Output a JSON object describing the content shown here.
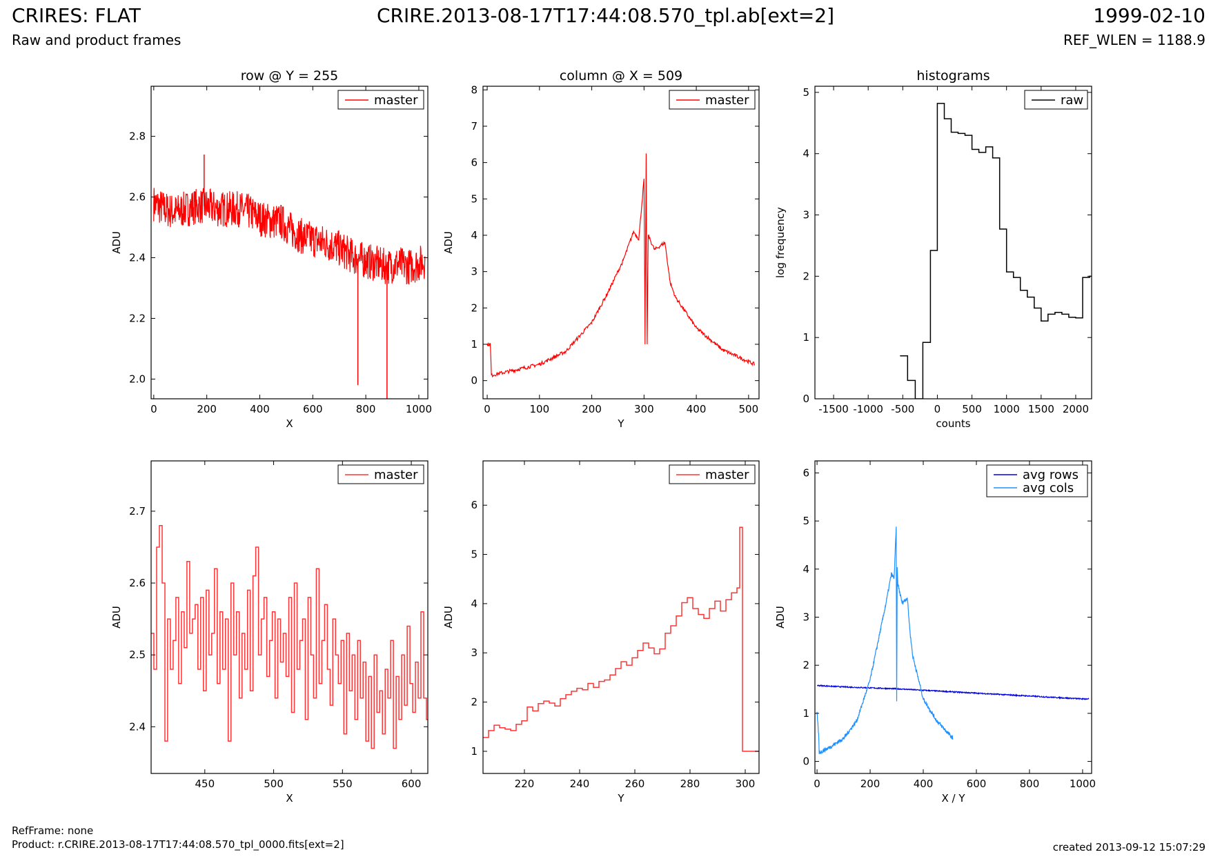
{
  "header": {
    "title": "CRIRES: FLAT",
    "subtitle": "Raw and product frames",
    "file": "CRIRE.2013-08-17T17:44:08.570_tpl.ab[ext=2]",
    "date": "1999-02-10",
    "ref_wlen": "REF_WLEN = 1188.9"
  },
  "footer": {
    "refframe": "RefFrame: none",
    "product": "Product: r.CRIRE.2013-08-17T17:44:08.570_tpl_0000.fits[ext=2]",
    "created": "created 2013-09-12 15:07:29"
  },
  "chart_data": [
    {
      "id": "row",
      "type": "line",
      "title": "row @ Y = 255",
      "xlabel": "X",
      "ylabel": "ADU",
      "xlim": [
        -10,
        1034
      ],
      "ylim": [
        1.935,
        2.965
      ],
      "xticks": [
        0,
        200,
        400,
        600,
        800,
        1000
      ],
      "yticks": [
        2.0,
        2.2,
        2.4,
        2.6,
        2.8
      ],
      "ytick_labels": [
        "2.0",
        "2.2",
        "2.4",
        "2.6",
        "2.8"
      ],
      "legend": "top-right",
      "series": [
        {
          "name": "master",
          "color": "#ff0000",
          "x": [
            0,
            40,
            80,
            120,
            160,
            200,
            240,
            280,
            320,
            360,
            400,
            440,
            480,
            520,
            560,
            600,
            640,
            680,
            720,
            760,
            800,
            840,
            880,
            920,
            960,
            1000,
            1023
          ],
          "y": [
            2.58,
            2.56,
            2.55,
            2.56,
            2.57,
            2.57,
            2.56,
            2.56,
            2.56,
            2.55,
            2.53,
            2.52,
            2.52,
            2.49,
            2.47,
            2.46,
            2.45,
            2.44,
            2.42,
            2.4,
            2.39,
            2.38,
            2.37,
            2.38,
            2.37,
            2.38,
            2.39
          ],
          "noise": 0.06,
          "spikes": [
            {
              "x": 190,
              "y": 2.74
            },
            {
              "x": 770,
              "y": 1.98
            },
            {
              "x": 880,
              "y": 1.93
            }
          ]
        }
      ]
    },
    {
      "id": "column",
      "type": "line",
      "title": "column @ X = 509",
      "xlabel": "Y",
      "ylabel": "ADU",
      "xlim": [
        -8,
        520
      ],
      "ylim": [
        -0.5,
        8.1
      ],
      "xticks": [
        0,
        100,
        200,
        300,
        400,
        500
      ],
      "yticks": [
        0,
        1,
        2,
        3,
        4,
        5,
        6,
        7,
        8
      ],
      "legend": "top-right",
      "series": [
        {
          "name": "master",
          "color": "#ff0000",
          "x": [
            0,
            6,
            8,
            50,
            100,
            150,
            200,
            230,
            260,
            280,
            290,
            300,
            302,
            304,
            306,
            308,
            320,
            340,
            350,
            360,
            400,
            450,
            511
          ],
          "y": [
            1.0,
            1.0,
            0.15,
            0.28,
            0.45,
            0.8,
            1.6,
            2.4,
            3.3,
            4.1,
            3.9,
            5.55,
            1.0,
            6.25,
            1.0,
            4.0,
            3.6,
            3.8,
            2.7,
            2.3,
            1.45,
            0.85,
            0.45
          ],
          "noise": 0.05
        }
      ]
    },
    {
      "id": "hist",
      "type": "line",
      "title": "histograms",
      "xlabel": "counts",
      "ylabel": "log frequency",
      "xlim": [
        -1770,
        2230
      ],
      "ylim": [
        0,
        5.1
      ],
      "xticks": [
        -1500,
        -1000,
        -500,
        0,
        500,
        1000,
        1500,
        2000
      ],
      "yticks": [
        0,
        1,
        2,
        3,
        4,
        5
      ],
      "legend": "top-right",
      "series": [
        {
          "name": "raw",
          "color": "#000000",
          "step": true,
          "x": [
            -540,
            -430,
            -320,
            -210,
            -100,
            0,
            100,
            200,
            300,
            400,
            500,
            600,
            700,
            800,
            900,
            1000,
            1100,
            1200,
            1300,
            1400,
            1500,
            1600,
            1700,
            1800,
            1900,
            2000,
            2100,
            2200
          ],
          "y": [
            0.7,
            0.3,
            0.0,
            0.92,
            2.42,
            4.82,
            4.57,
            4.35,
            4.33,
            4.3,
            4.07,
            4.02,
            4.11,
            3.93,
            2.77,
            2.07,
            1.98,
            1.77,
            1.66,
            1.48,
            1.27,
            1.38,
            1.41,
            1.38,
            1.33,
            1.32,
            1.98,
            2.0
          ]
        }
      ]
    },
    {
      "id": "row_zoom",
      "type": "line",
      "title": "",
      "xlabel": "X",
      "ylabel": "ADU",
      "xlim": [
        411,
        612
      ],
      "ylim": [
        2.335,
        2.77
      ],
      "xticks": [
        450,
        500,
        550,
        600
      ],
      "yticks": [
        2.4,
        2.5,
        2.6,
        2.7
      ],
      "ytick_labels": [
        "2.4",
        "2.5",
        "2.6",
        "2.7"
      ],
      "legend": "top-right",
      "series": [
        {
          "name": "master",
          "color": "#ff3333",
          "step": true,
          "x": [
            411,
            413,
            415,
            417,
            419,
            421,
            423,
            425,
            427,
            429,
            431,
            433,
            435,
            437,
            439,
            441,
            443,
            445,
            447,
            449,
            451,
            453,
            455,
            457,
            459,
            461,
            463,
            465,
            467,
            469,
            471,
            473,
            475,
            477,
            479,
            481,
            483,
            485,
            487,
            489,
            491,
            493,
            495,
            497,
            499,
            501,
            503,
            505,
            507,
            509,
            511,
            513,
            515,
            517,
            519,
            521,
            523,
            525,
            527,
            529,
            531,
            533,
            535,
            537,
            539,
            541,
            543,
            545,
            547,
            549,
            551,
            553,
            555,
            557,
            559,
            561,
            563,
            565,
            567,
            569,
            571,
            573,
            575,
            577,
            579,
            581,
            583,
            585,
            587,
            589,
            591,
            593,
            595,
            597,
            599,
            601,
            603,
            605,
            607,
            609,
            611
          ],
          "y": [
            2.53,
            2.48,
            2.65,
            2.68,
            2.6,
            2.38,
            2.55,
            2.48,
            2.52,
            2.58,
            2.46,
            2.56,
            2.51,
            2.63,
            2.53,
            2.55,
            2.57,
            2.48,
            2.58,
            2.45,
            2.59,
            2.5,
            2.53,
            2.62,
            2.46,
            2.56,
            2.48,
            2.55,
            2.38,
            2.6,
            2.5,
            2.56,
            2.44,
            2.53,
            2.48,
            2.59,
            2.45,
            2.61,
            2.65,
            2.5,
            2.55,
            2.58,
            2.47,
            2.52,
            2.56,
            2.44,
            2.55,
            2.49,
            2.53,
            2.47,
            2.58,
            2.42,
            2.6,
            2.48,
            2.52,
            2.55,
            2.41,
            2.58,
            2.5,
            2.44,
            2.62,
            2.46,
            2.52,
            2.57,
            2.48,
            2.43,
            2.55,
            2.5,
            2.46,
            2.52,
            2.39,
            2.53,
            2.45,
            2.5,
            2.41,
            2.52,
            2.44,
            2.49,
            2.38,
            2.47,
            2.37,
            2.5,
            2.42,
            2.45,
            2.39,
            2.48,
            2.44,
            2.52,
            2.37,
            2.47,
            2.41,
            2.5,
            2.43,
            2.54,
            2.46,
            2.42,
            2.49,
            2.44,
            2.56,
            2.44,
            2.41
          ]
        }
      ]
    },
    {
      "id": "col_zoom",
      "type": "line",
      "title": "",
      "xlabel": "Y",
      "ylabel": "ADU",
      "xlim": [
        205,
        305
      ],
      "ylim": [
        0.55,
        6.9
      ],
      "xticks": [
        220,
        240,
        260,
        280,
        300
      ],
      "yticks": [
        1,
        2,
        3,
        4,
        5,
        6
      ],
      "legend": "top-right",
      "series": [
        {
          "name": "master",
          "color": "#ff3333",
          "step": true,
          "x": [
            205,
            207,
            209,
            211,
            213,
            215,
            217,
            219,
            221,
            223,
            225,
            227,
            229,
            231,
            233,
            235,
            237,
            239,
            241,
            243,
            245,
            247,
            249,
            251,
            253,
            255,
            257,
            259,
            261,
            263,
            265,
            267,
            269,
            271,
            273,
            275,
            277,
            279,
            281,
            283,
            285,
            287,
            289,
            291,
            293,
            295,
            297,
            298,
            299,
            300,
            305
          ],
          "y": [
            1.28,
            1.42,
            1.53,
            1.48,
            1.45,
            1.42,
            1.55,
            1.62,
            1.9,
            1.82,
            1.97,
            2.02,
            1.98,
            1.92,
            2.07,
            2.15,
            2.22,
            2.28,
            2.25,
            2.38,
            2.3,
            2.42,
            2.45,
            2.55,
            2.68,
            2.82,
            2.75,
            2.9,
            3.05,
            3.2,
            3.1,
            2.98,
            3.08,
            3.4,
            3.55,
            3.75,
            4.02,
            4.12,
            3.9,
            3.78,
            3.7,
            3.9,
            4.05,
            3.85,
            4.08,
            4.22,
            4.32,
            5.55,
            1.0,
            1.0,
            1.0
          ]
        }
      ]
    },
    {
      "id": "avg",
      "type": "line",
      "title": "",
      "xlabel": "X / Y",
      "ylabel": "ADU",
      "xlim": [
        -8,
        1034
      ],
      "ylim": [
        -0.25,
        6.25
      ],
      "xticks": [
        0,
        200,
        400,
        600,
        800,
        1000
      ],
      "yticks": [
        0,
        1,
        2,
        3,
        4,
        5,
        6
      ],
      "legend": "top-right",
      "series": [
        {
          "name": "avg rows",
          "color": "#0000dd",
          "x": [
            0,
            100,
            200,
            300,
            400,
            500,
            600,
            700,
            800,
            900,
            1000,
            1023
          ],
          "y": [
            1.58,
            1.55,
            1.53,
            1.51,
            1.48,
            1.45,
            1.42,
            1.39,
            1.36,
            1.33,
            1.3,
            1.3
          ],
          "noise": 0.012
        },
        {
          "name": "avg cols",
          "color": "#1e90ff",
          "x": [
            0,
            6,
            8,
            50,
            100,
            150,
            200,
            230,
            260,
            280,
            290,
            298,
            300,
            302,
            304,
            308,
            320,
            340,
            350,
            360,
            400,
            450,
            511
          ],
          "y": [
            1.0,
            0.55,
            0.18,
            0.3,
            0.48,
            0.85,
            1.7,
            2.5,
            3.3,
            3.9,
            3.8,
            4.85,
            1.25,
            4.0,
            3.7,
            3.6,
            3.3,
            3.4,
            2.7,
            2.2,
            1.3,
            0.85,
            0.48
          ],
          "noise": 0.04
        }
      ]
    }
  ]
}
